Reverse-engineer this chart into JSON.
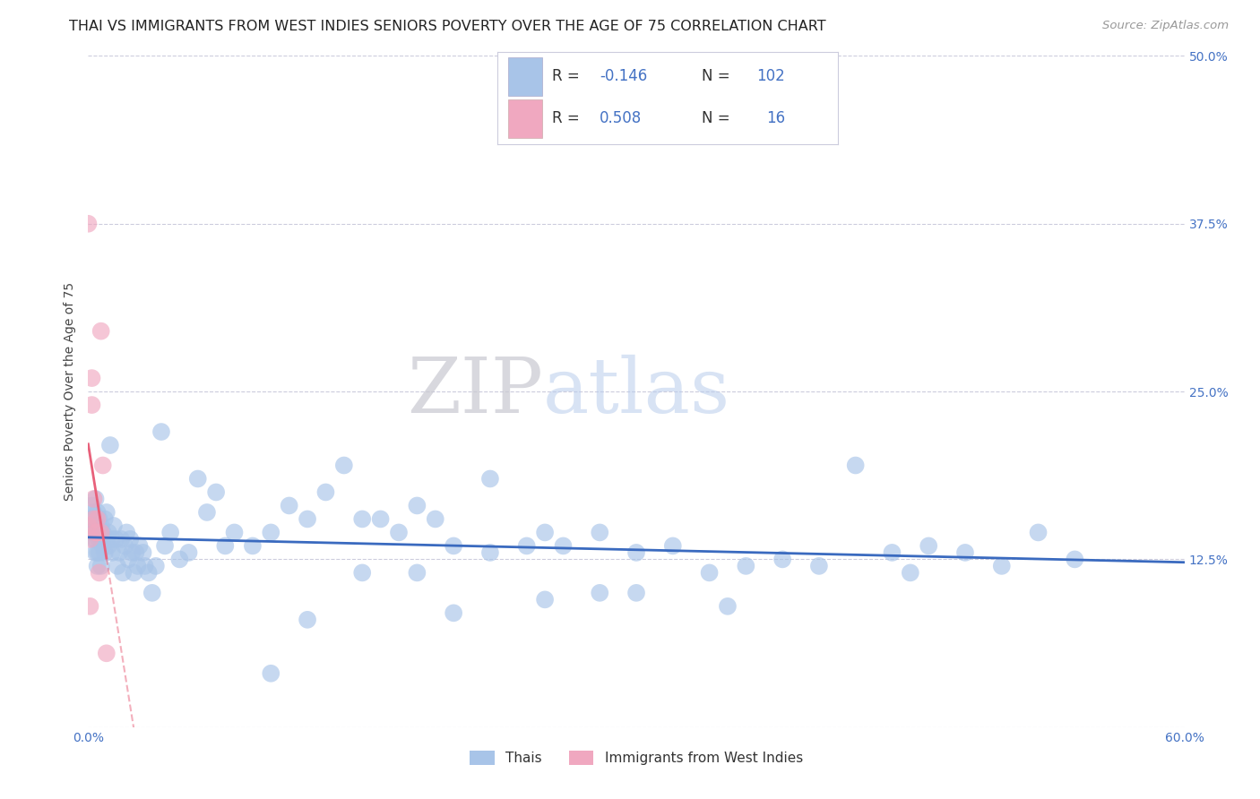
{
  "title": "THAI VS IMMIGRANTS FROM WEST INDIES SENIORS POVERTY OVER THE AGE OF 75 CORRELATION CHART",
  "source": "Source: ZipAtlas.com",
  "ylabel": "Seniors Poverty Over the Age of 75",
  "xlim": [
    0.0,
    0.6
  ],
  "ylim": [
    0.0,
    0.5
  ],
  "xticks": [
    0.0,
    0.1,
    0.2,
    0.3,
    0.4,
    0.5,
    0.6
  ],
  "yticks": [
    0.0,
    0.125,
    0.25,
    0.375,
    0.5
  ],
  "xticklabels": [
    "0.0%",
    "",
    "",
    "",
    "",
    "",
    "60.0%"
  ],
  "yticklabels_right": [
    "",
    "12.5%",
    "25.0%",
    "37.5%",
    "50.0%"
  ],
  "blue_color": "#a8c4e8",
  "pink_color": "#f0a8c0",
  "blue_line_color": "#3a6abf",
  "pink_line_color": "#e8607a",
  "grid_color": "#ccccdd",
  "watermark_zip": "ZIP",
  "watermark_atlas": "atlas",
  "background_color": "#ffffff",
  "thai_x": [
    0.001,
    0.002,
    0.002,
    0.003,
    0.003,
    0.003,
    0.004,
    0.004,
    0.004,
    0.005,
    0.005,
    0.005,
    0.005,
    0.006,
    0.006,
    0.006,
    0.007,
    0.007,
    0.007,
    0.008,
    0.008,
    0.008,
    0.009,
    0.009,
    0.01,
    0.01,
    0.011,
    0.011,
    0.012,
    0.013,
    0.013,
    0.014,
    0.015,
    0.016,
    0.017,
    0.018,
    0.019,
    0.02,
    0.021,
    0.022,
    0.023,
    0.024,
    0.025,
    0.026,
    0.027,
    0.028,
    0.03,
    0.031,
    0.033,
    0.035,
    0.037,
    0.04,
    0.042,
    0.045,
    0.05,
    0.055,
    0.06,
    0.065,
    0.07,
    0.075,
    0.08,
    0.09,
    0.1,
    0.11,
    0.12,
    0.13,
    0.14,
    0.15,
    0.16,
    0.17,
    0.18,
    0.19,
    0.2,
    0.22,
    0.24,
    0.25,
    0.26,
    0.28,
    0.3,
    0.32,
    0.34,
    0.36,
    0.38,
    0.4,
    0.42,
    0.44,
    0.46,
    0.48,
    0.5,
    0.52,
    0.54,
    0.3,
    0.35,
    0.2,
    0.25,
    0.1,
    0.12,
    0.15,
    0.18,
    0.22,
    0.28,
    0.45
  ],
  "thai_y": [
    0.155,
    0.145,
    0.165,
    0.14,
    0.16,
    0.15,
    0.13,
    0.17,
    0.14,
    0.15,
    0.16,
    0.13,
    0.12,
    0.14,
    0.155,
    0.13,
    0.14,
    0.15,
    0.12,
    0.135,
    0.145,
    0.14,
    0.13,
    0.155,
    0.14,
    0.16,
    0.135,
    0.145,
    0.21,
    0.14,
    0.13,
    0.15,
    0.14,
    0.12,
    0.13,
    0.14,
    0.115,
    0.135,
    0.145,
    0.125,
    0.14,
    0.13,
    0.115,
    0.13,
    0.12,
    0.135,
    0.13,
    0.12,
    0.115,
    0.1,
    0.12,
    0.22,
    0.135,
    0.145,
    0.125,
    0.13,
    0.185,
    0.16,
    0.175,
    0.135,
    0.145,
    0.135,
    0.145,
    0.165,
    0.155,
    0.175,
    0.195,
    0.155,
    0.155,
    0.145,
    0.165,
    0.155,
    0.135,
    0.185,
    0.135,
    0.145,
    0.135,
    0.145,
    0.13,
    0.135,
    0.115,
    0.12,
    0.125,
    0.12,
    0.195,
    0.13,
    0.135,
    0.13,
    0.12,
    0.145,
    0.125,
    0.1,
    0.09,
    0.085,
    0.095,
    0.04,
    0.08,
    0.115,
    0.115,
    0.13,
    0.1,
    0.115
  ],
  "wi_x": [
    0.0,
    0.0,
    0.001,
    0.001,
    0.002,
    0.002,
    0.003,
    0.003,
    0.004,
    0.005,
    0.005,
    0.006,
    0.007,
    0.007,
    0.008,
    0.01
  ],
  "wi_y": [
    0.375,
    0.15,
    0.14,
    0.09,
    0.26,
    0.24,
    0.17,
    0.155,
    0.145,
    0.145,
    0.155,
    0.115,
    0.145,
    0.295,
    0.195,
    0.055
  ],
  "title_fontsize": 11.5,
  "axis_label_fontsize": 10,
  "tick_fontsize": 10,
  "legend_fontsize": 12
}
